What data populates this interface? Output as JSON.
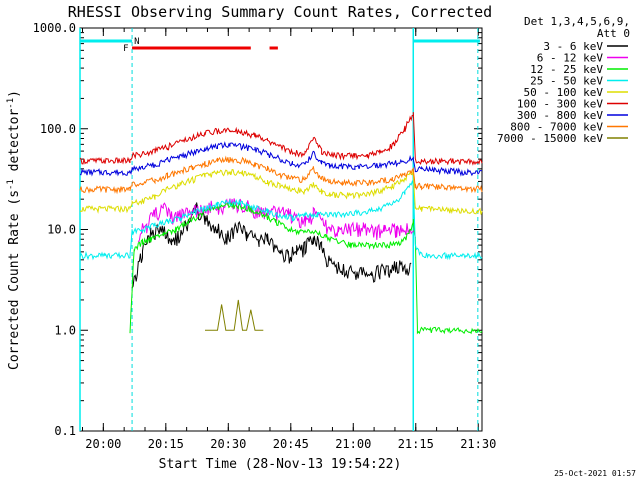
{
  "chart_data": {
    "type": "line",
    "title": "RHESSI Observing Summary Count Rates, Corrected",
    "xlabel": "Start Time (28-Nov-13 19:54:22)",
    "ylabel_main": "Corrected Count Rate (s",
    "ylabel_sup1": "-1",
    "ylabel_mid": " detector",
    "ylabel_sup2": "-1",
    "ylabel_end": ")",
    "x_unit": "minutes after 19:54:22",
    "xlim": [
      0,
      96.5
    ],
    "ylim": [
      0.1,
      1000
    ],
    "yscale": "log",
    "x_ticks": [
      {
        "label": "20:00",
        "x": 5.6
      },
      {
        "label": "20:15",
        "x": 20.6
      },
      {
        "label": "20:30",
        "x": 35.6
      },
      {
        "label": "20:45",
        "x": 50.6
      },
      {
        "label": "21:00",
        "x": 65.6
      },
      {
        "label": "21:15",
        "x": 80.6
      },
      {
        "label": "21:30",
        "x": 95.6
      }
    ],
    "y_ticks": [
      {
        "label": "0.1",
        "y": 0.1
      },
      {
        "label": "1.0",
        "y": 1
      },
      {
        "label": "10.0",
        "y": 10
      },
      {
        "label": "100.0",
        "y": 100
      },
      {
        "label": "1000.0",
        "y": 1000
      }
    ],
    "legend_title": "Det 1,3,4,5,6,9,",
    "legend_subtitle": "Att 0",
    "legend_placement": "right",
    "series": [
      {
        "name": "3 - 6 keV",
        "color": "#000000",
        "x": [
          0,
          12,
          12.5,
          15,
          17,
          20,
          22,
          25,
          28,
          30,
          33,
          35,
          38,
          40,
          43,
          45,
          48,
          50,
          52,
          54,
          56,
          58,
          60,
          62,
          64,
          66,
          68,
          70,
          72,
          74,
          76,
          78,
          79.5,
          80.5,
          96.5
        ],
        "y": [
          null,
          null,
          2.5,
          6,
          9,
          10,
          7,
          10,
          16,
          13,
          10,
          8,
          11,
          9,
          8,
          8,
          5.5,
          5.5,
          6,
          6.5,
          8.5,
          6.5,
          4.5,
          4.2,
          3.8,
          3.7,
          3.6,
          3.6,
          3.8,
          4,
          4.2,
          4.2,
          4,
          null,
          null
        ]
      },
      {
        "name": "6 - 12 keV",
        "color": "#ee00ee",
        "x": [
          14,
          16,
          18,
          20,
          22,
          25,
          28,
          30,
          33,
          35,
          38,
          40,
          43,
          45,
          48,
          50,
          52,
          54,
          56,
          58,
          60,
          62,
          65,
          68,
          70,
          73,
          76,
          79,
          80.5
        ],
        "y": [
          9,
          11,
          14,
          16,
          13,
          14,
          15,
          17,
          16,
          17,
          18,
          17,
          15,
          14,
          15,
          14,
          13,
          12,
          14,
          12,
          10,
          10,
          10,
          10,
          9.5,
          9.5,
          10,
          10.5,
          10
        ]
      },
      {
        "name": "12 - 25 keV",
        "color": "#00ee00",
        "x": [
          0,
          12,
          13,
          15,
          17,
          20,
          23,
          26,
          29,
          32,
          35,
          38,
          41,
          44,
          47,
          50,
          53,
          56,
          59,
          62,
          65,
          68,
          71,
          74,
          77,
          79,
          80,
          80.5,
          81,
          96.5
        ],
        "y": [
          null,
          1.0,
          6.5,
          7.5,
          8,
          9,
          10,
          12,
          14,
          16,
          17.5,
          17,
          16,
          14,
          12,
          10,
          9.5,
          9.5,
          8.5,
          7.5,
          7,
          7,
          7,
          7,
          7.5,
          9,
          12,
          8,
          1.0,
          1.0
        ]
      },
      {
        "name": "25 - 50 keV",
        "color": "#00eeee",
        "x": [
          0,
          6,
          12,
          12.5,
          15,
          18,
          21,
          24,
          27,
          30,
          33,
          36,
          39,
          42,
          45,
          48,
          51,
          54,
          57,
          60,
          63,
          66,
          69,
          72,
          75,
          78,
          80,
          80.5,
          82,
          96.5
        ],
        "y": [
          5.5,
          5.5,
          5.5,
          9.5,
          10,
          11,
          12,
          13,
          14.5,
          16,
          17.5,
          18.5,
          18,
          16.5,
          15,
          14,
          13,
          14,
          14,
          14,
          14,
          14.5,
          15,
          16,
          18,
          23,
          30,
          7,
          5.5,
          5.5
        ]
      },
      {
        "name": "50 - 100 keV",
        "color": "#dddd00",
        "x": [
          0,
          12,
          12.5,
          15,
          18,
          21,
          24,
          27,
          30,
          33,
          36,
          39,
          42,
          45,
          48,
          51,
          54,
          56,
          58,
          60,
          63,
          66,
          69,
          72,
          75,
          78,
          80,
          80.5,
          82,
          96.5
        ],
        "y": [
          16,
          16,
          18,
          19,
          21,
          25,
          28,
          31,
          34,
          36,
          37,
          36,
          33,
          30,
          27,
          25,
          24,
          28,
          24,
          22,
          22,
          22,
          22.5,
          24,
          27,
          32,
          38,
          16,
          16,
          15
        ]
      },
      {
        "name": "100 - 300 keV",
        "color": "#dd0000",
        "x": [
          0,
          12,
          12.5,
          15,
          18,
          21,
          24,
          27,
          30,
          33,
          36,
          39,
          42,
          45,
          48,
          51,
          54,
          56,
          58,
          60,
          63,
          66,
          69,
          72,
          75,
          78,
          80,
          80.5,
          82,
          96.5
        ],
        "y": [
          48,
          48,
          55,
          56,
          60,
          66,
          74,
          82,
          90,
          95,
          96,
          92,
          85,
          76,
          66,
          58,
          56,
          80,
          60,
          55,
          54,
          54,
          55,
          58,
          68,
          100,
          145,
          48,
          48,
          47
        ]
      },
      {
        "name": "300 - 800 keV",
        "color": "#0000dd",
        "x": [
          0,
          12,
          12.5,
          15,
          18,
          21,
          24,
          27,
          30,
          33,
          36,
          39,
          42,
          45,
          48,
          51,
          54,
          56,
          58,
          60,
          63,
          66,
          69,
          72,
          75,
          78,
          80,
          80.5,
          82,
          96.5
        ],
        "y": [
          37,
          37,
          40,
          41,
          44,
          49,
          53,
          58,
          63,
          67,
          69,
          66,
          62,
          56,
          50,
          45,
          43,
          58,
          46,
          43,
          42,
          42,
          42,
          43,
          45,
          48,
          52,
          40,
          40,
          36
        ]
      },
      {
        "name": "800 - 7000 keV",
        "color": "#ff7700",
        "x": [
          0,
          12,
          12.5,
          15,
          18,
          21,
          24,
          27,
          30,
          33,
          36,
          39,
          42,
          45,
          48,
          51,
          54,
          56,
          58,
          60,
          63,
          66,
          69,
          72,
          75,
          78,
          80,
          80.5,
          82,
          96.5
        ],
        "y": [
          25,
          25,
          28,
          29,
          31,
          34,
          38,
          41,
          45,
          48,
          49,
          48,
          44,
          40,
          35,
          32,
          31,
          40,
          32,
          30,
          29,
          29,
          29,
          30,
          32,
          35,
          38,
          27,
          27,
          25
        ]
      },
      {
        "name": "7000 - 15000 keV",
        "color": "#808000",
        "x": [
          30,
          31,
          33,
          34,
          35,
          37,
          38,
          39,
          40,
          41,
          42,
          43,
          44
        ],
        "y": [
          1.0,
          1.0,
          1.0,
          1.8,
          1.0,
          1.0,
          2.0,
          1.0,
          1.0,
          1.6,
          1.0,
          1.0,
          1.0
        ]
      }
    ],
    "attenuator_intervals": [
      {
        "label": "N",
        "start": 0,
        "end": 12.5,
        "color": "#00eeee"
      },
      {
        "label": "",
        "start": 80,
        "end": 96,
        "color": "#00eeee"
      }
    ],
    "flare_intervals": [
      {
        "label": "F",
        "start": 12.5,
        "end": 41,
        "color": "#ee0000"
      },
      {
        "label": "",
        "start": 45.5,
        "end": 47.5,
        "color": "#ee0000"
      }
    ],
    "dashed_markers_x": [
      12.5,
      95.5
    ],
    "solid_markers_x": [
      0,
      80
    ]
  },
  "footer": {
    "timestamp": "25-Oct-2021 01:57"
  }
}
